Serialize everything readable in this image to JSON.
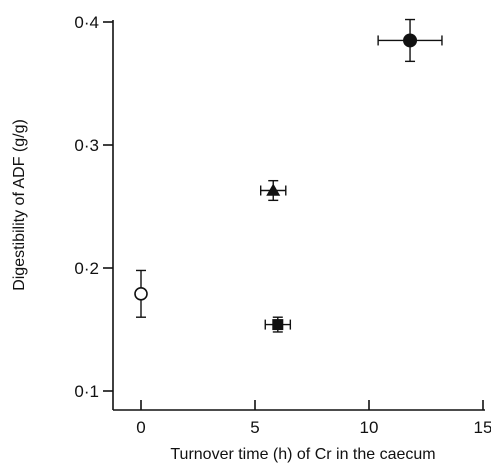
{
  "chart_data": {
    "type": "scatter",
    "title": "",
    "xlabel": "Turnover time (h) of Cr in the caecum",
    "ylabel": "Digestibility of ADF (g/g)",
    "xlim": [
      0,
      15
    ],
    "ylim": [
      0.1,
      0.4
    ],
    "x_ticks": [
      0,
      5,
      10,
      15
    ],
    "x_tick_labels": [
      "0",
      "5",
      "10",
      "15"
    ],
    "y_ticks": [
      0.1,
      0.2,
      0.3,
      0.4
    ],
    "y_tick_labels": [
      "0·1",
      "0·2",
      "0·3",
      "0·4"
    ],
    "grid": false,
    "points": [
      {
        "marker": "open-circle",
        "x": 0,
        "y": 0.179,
        "x_err": 0,
        "y_err": 0.019
      },
      {
        "marker": "filled-triangle",
        "x": 5.8,
        "y": 0.263,
        "x_err": 0.55,
        "y_err": 0.008
      },
      {
        "marker": "filled-square",
        "x": 6.0,
        "y": 0.154,
        "x_err": 0.55,
        "y_err": 0.006
      },
      {
        "marker": "filled-circle",
        "x": 11.8,
        "y": 0.385,
        "x_err": 1.4,
        "y_err": 0.017
      }
    ]
  }
}
